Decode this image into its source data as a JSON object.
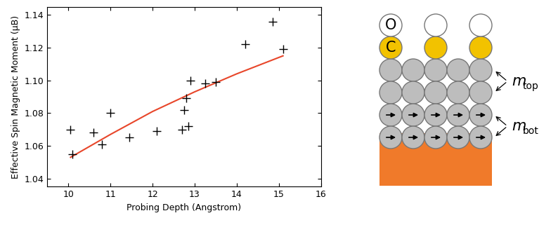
{
  "chart_data": {
    "type": "scatter",
    "x_label": "Probing Depth (Angstrom)",
    "y_label": "Effective Spin Magnetic Moment (μB)",
    "x": [
      10.05,
      10.1,
      10.6,
      10.8,
      11.0,
      11.45,
      12.1,
      12.7,
      12.75,
      12.8,
      12.85,
      12.9,
      13.25,
      13.5,
      14.2,
      14.85,
      15.1
    ],
    "values": [
      1.07,
      1.055,
      1.068,
      1.061,
      1.08,
      1.065,
      1.069,
      1.07,
      1.082,
      1.089,
      1.072,
      1.1,
      1.098,
      1.099,
      1.122,
      1.136,
      1.119
    ],
    "color": "#000000",
    "marker": "+",
    "fit": {
      "type": "line",
      "color": "#e8462a",
      "x": [
        10.05,
        11.0,
        12.0,
        13.0,
        14.0,
        15.1
      ],
      "values": [
        1.053,
        1.067,
        1.081,
        1.093,
        1.104,
        1.115
      ]
    },
    "xlim": [
      9.5,
      16
    ],
    "xticks": [
      10,
      11,
      12,
      13,
      14,
      15,
      16
    ],
    "ylim": [
      1.035,
      1.145
    ],
    "yticks": [
      1.04,
      1.06,
      1.08,
      {
        "value": 1.1,
        "label": "1.10"
      },
      1.12,
      1.14
    ],
    "grid": false
  },
  "diagram": {
    "adsorbate_labels": [
      "O",
      "C"
    ],
    "moments": [
      {
        "symbol": "m",
        "subscript": "top"
      },
      {
        "symbol": "m",
        "subscript": "bot"
      }
    ]
  }
}
